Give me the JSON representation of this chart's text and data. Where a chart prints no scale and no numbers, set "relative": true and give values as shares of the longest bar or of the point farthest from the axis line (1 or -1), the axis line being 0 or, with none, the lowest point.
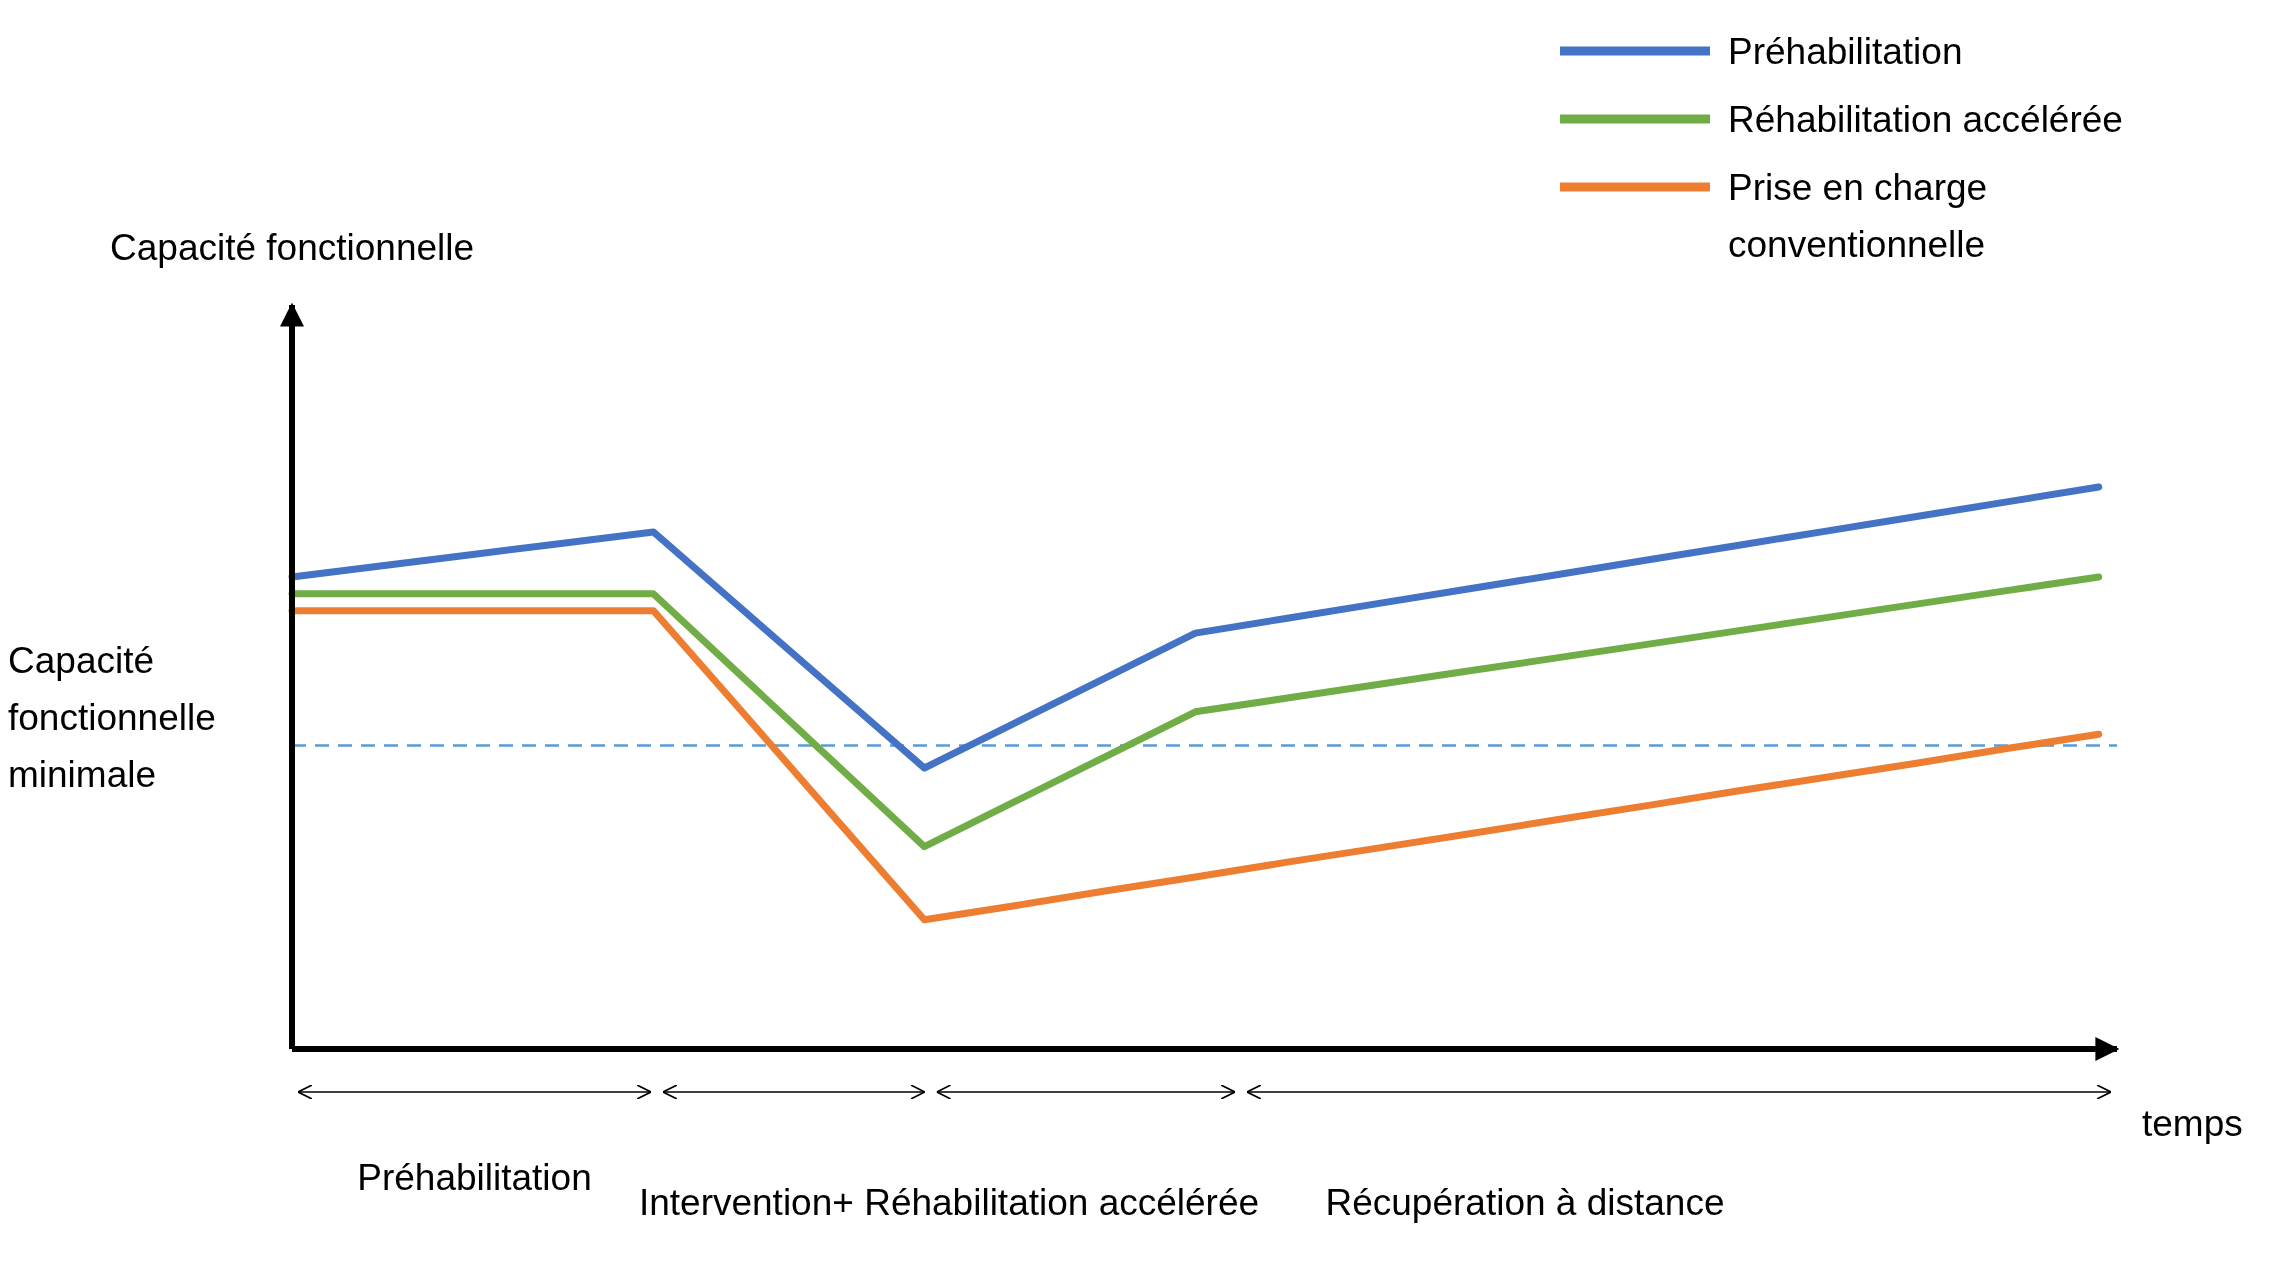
{
  "chart_data": {
    "type": "line",
    "relative": true,
    "xlabel": "temps",
    "legend": "top right",
    "line_style": "solid",
    "categories": [
      null,
      null,
      null,
      null,
      null,
      null,
      null,
      null,
      null,
      null,
      null,
      null,
      null,
      null,
      null,
      null,
      null,
      null,
      null,
      null,
      null
    ],
    "series": [
      {
        "name": "Préhabilitation",
        "color": "#4472c4",
        "values": [
          0.84,
          0.86,
          0.88,
          0.9,
          0.92,
          0.78,
          0.64,
          0.5,
          0.58,
          0.66,
          0.74,
          0.766,
          0.792,
          0.818,
          0.844,
          0.87,
          0.896,
          0.922,
          0.948,
          0.974,
          1.0
        ]
      },
      {
        "name": "Réhabilitation accélérée",
        "color": "#70ad47",
        "values": [
          0.81,
          0.81,
          0.81,
          0.81,
          0.81,
          0.66,
          0.51,
          0.36,
          0.44,
          0.52,
          0.6,
          0.624,
          0.648,
          0.672,
          0.696,
          0.72,
          0.744,
          0.768,
          0.792,
          0.816,
          0.84
        ]
      },
      {
        "name": "Prise en charge conventionnelle",
        "color": "#ed7d31",
        "values": [
          0.78,
          0.78,
          0.78,
          0.78,
          0.78,
          0.597,
          0.413,
          0.23,
          0.255,
          0.281,
          0.306,
          0.332,
          0.357,
          0.382,
          0.408,
          0.433,
          0.459,
          0.484,
          0.509,
          0.535,
          0.56
        ]
      }
    ],
    "ref_lines": [
      {
        "axis": "y",
        "value": 0.54,
        "label": "Capacité fonctionnelle minimale",
        "color": "#5b9bd5",
        "line_style": "dashed"
      }
    ],
    "annotations": [
      "Capacité fonctionnelle",
      "Préhabilitation",
      "Intervention+ Réhabilitation accélérée",
      "Récupération à distance"
    ]
  }
}
